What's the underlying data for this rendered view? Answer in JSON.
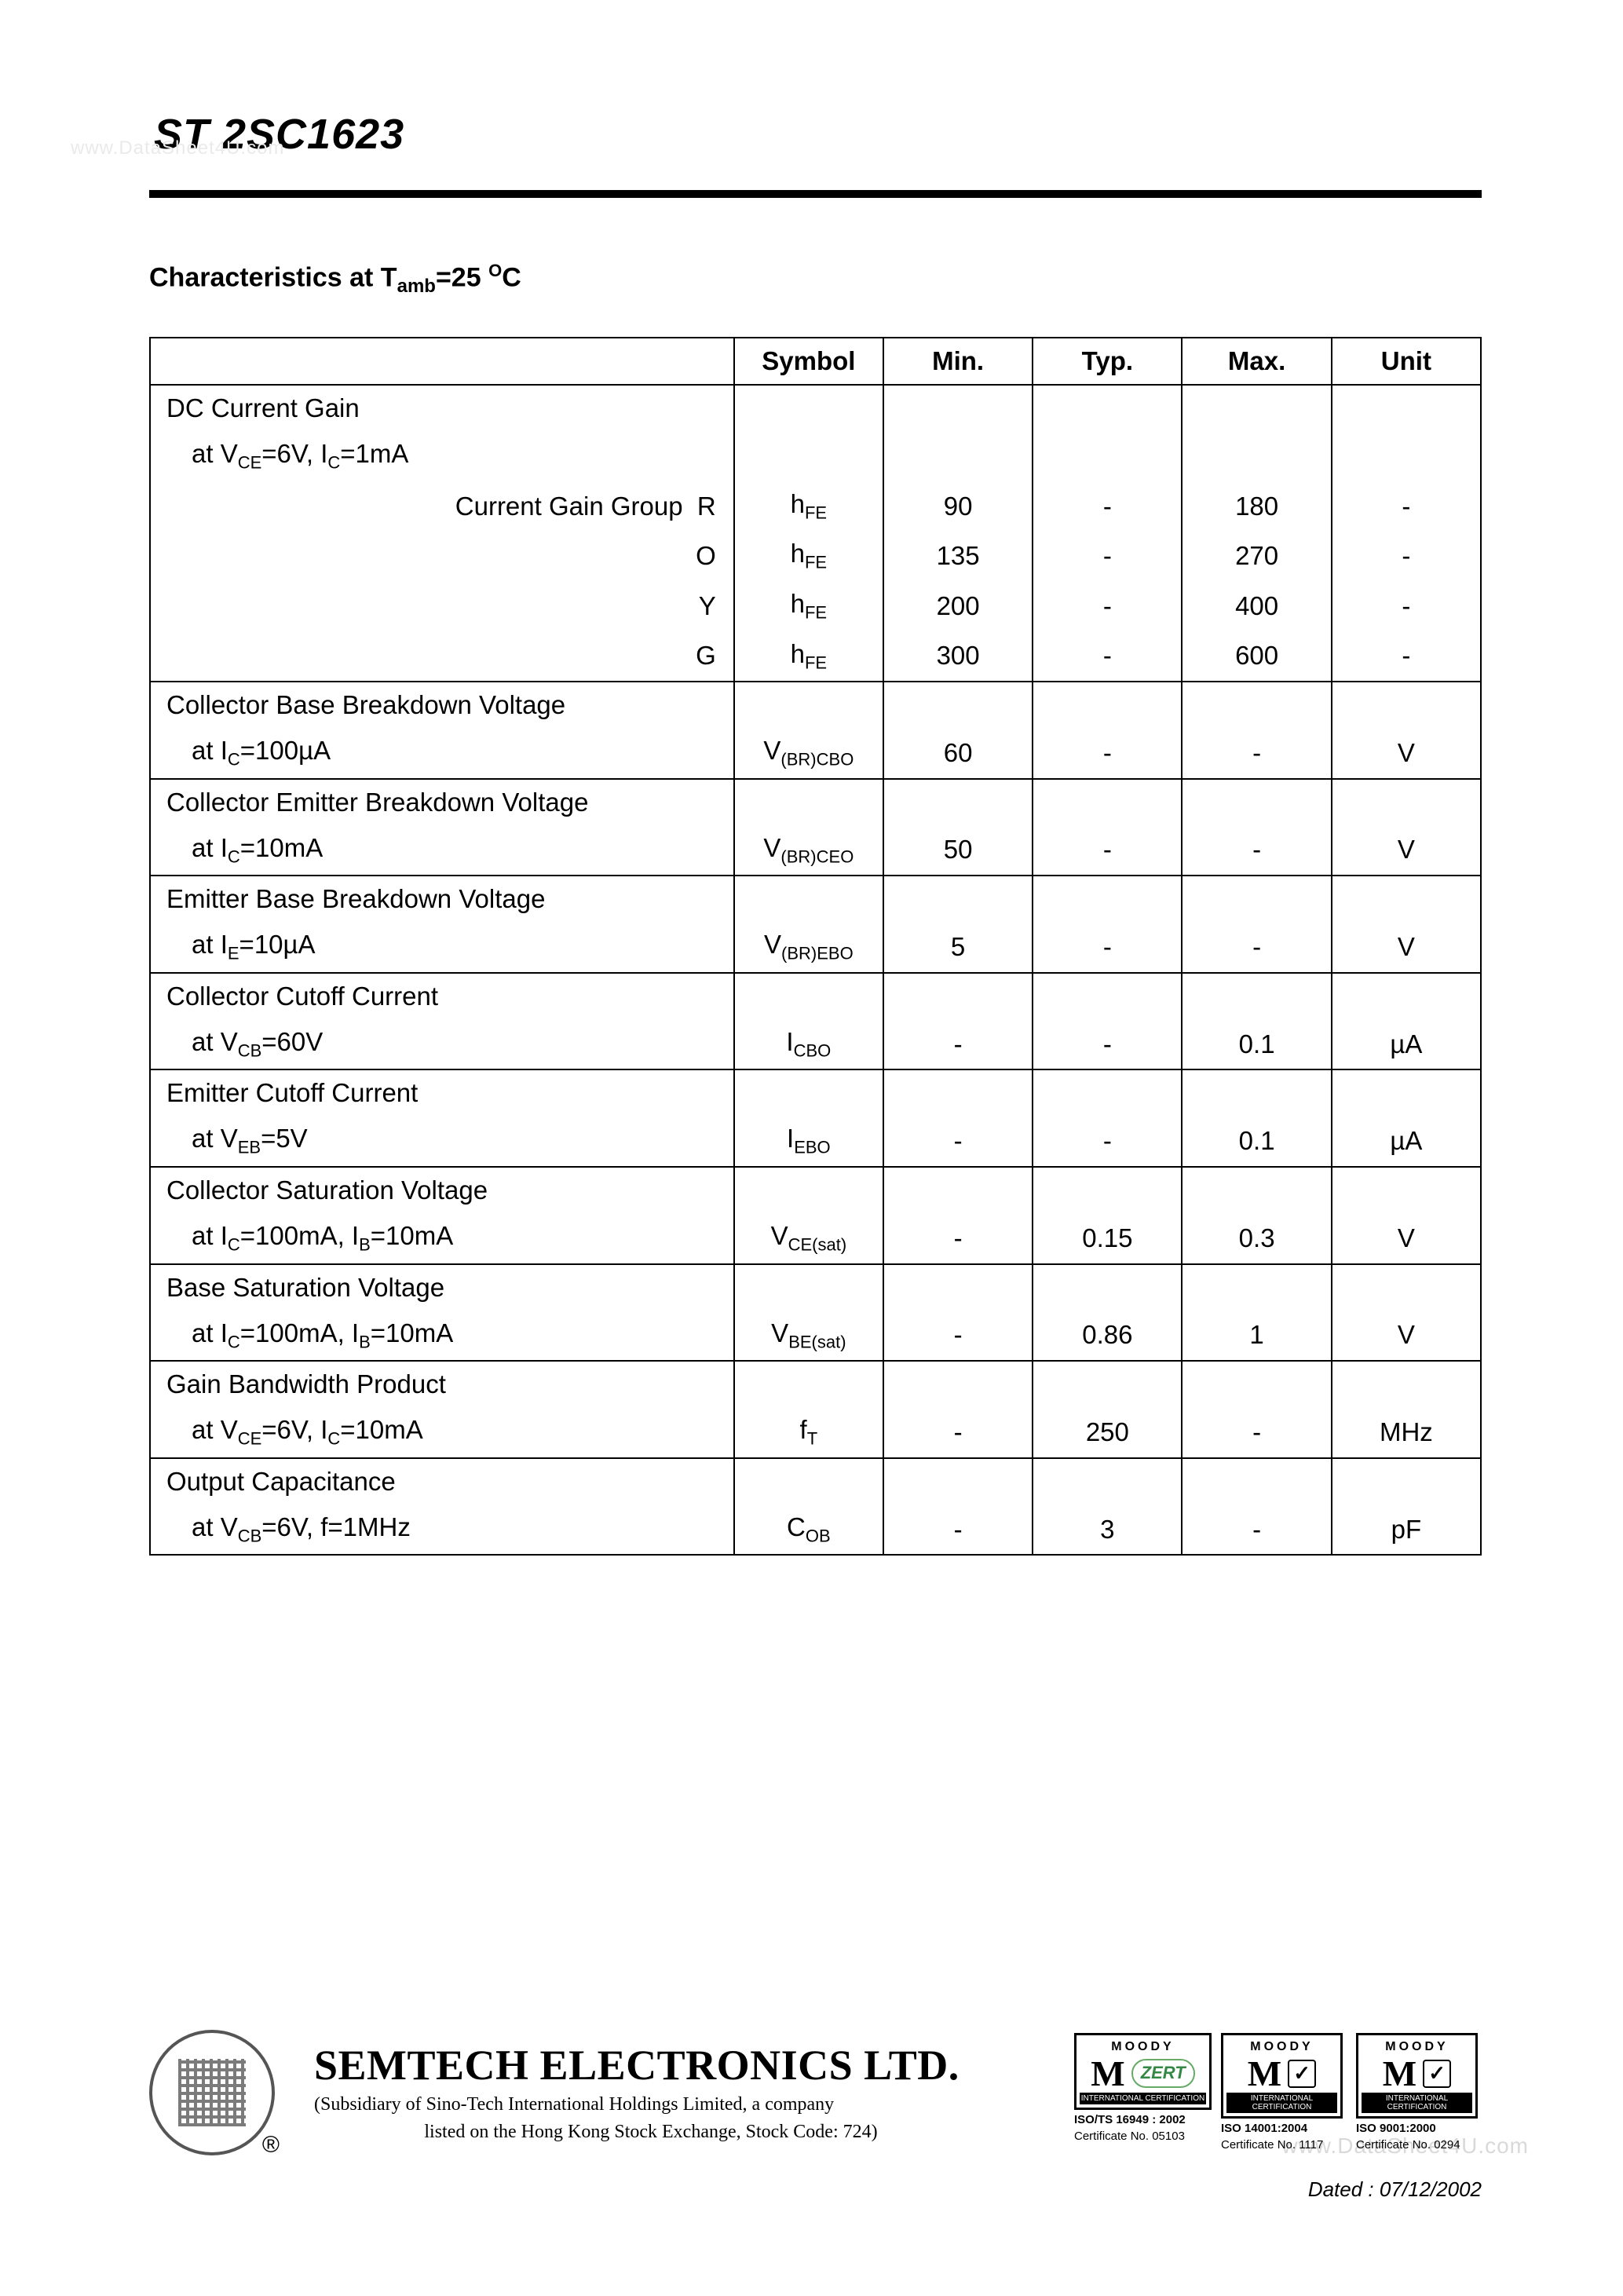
{
  "watermarks": {
    "top_left": "www.DataSheet4U.com",
    "bottom_right": "www.DataSheet4U.com"
  },
  "header": {
    "part_number": "ST 2SC1623"
  },
  "section": {
    "title_prefix": "Characteristics at T",
    "title_sub": "amb",
    "title_eq": "=25 ",
    "title_sup": "O",
    "title_suffix": "C"
  },
  "table": {
    "headers": {
      "param": "",
      "symbol": "Symbol",
      "min": "Min.",
      "typ": "Typ.",
      "max": "Max.",
      "unit": "Unit"
    },
    "rows": [
      {
        "param_html": "DC Current Gain",
        "symbol": "",
        "min": "",
        "typ": "",
        "max": "",
        "unit": "",
        "cls": "no-bottom"
      },
      {
        "param_html": "<span class='indent1'>at V<sub>CE</sub>=6V, I<sub>C</sub>=1mA</span>",
        "symbol": "",
        "min": "",
        "typ": "",
        "max": "",
        "unit": "",
        "cls": "no-top no-bottom"
      },
      {
        "param_html": "<span class='rtAlignLabel'>Current Gain Group&nbsp;&nbsp;R</span>",
        "symbol": "h<sub>FE</sub>",
        "min": "90",
        "typ": "-",
        "max": "180",
        "unit": "-",
        "cls": "no-top no-bottom"
      },
      {
        "param_html": "<span class='rtAlignLabel'>O</span>",
        "symbol": "h<sub>FE</sub>",
        "min": "135",
        "typ": "-",
        "max": "270",
        "unit": "-",
        "cls": "no-top no-bottom"
      },
      {
        "param_html": "<span class='rtAlignLabel'>Y</span>",
        "symbol": "h<sub>FE</sub>",
        "min": "200",
        "typ": "-",
        "max": "400",
        "unit": "-",
        "cls": "no-top no-bottom"
      },
      {
        "param_html": "<span class='rtAlignLabel'>G</span>",
        "symbol": "h<sub>FE</sub>",
        "min": "300",
        "typ": "-",
        "max": "600",
        "unit": "-",
        "cls": "no-top"
      },
      {
        "param_html": "Collector Base Breakdown Voltage",
        "symbol": "",
        "min": "",
        "typ": "",
        "max": "",
        "unit": "",
        "cls": "no-bottom"
      },
      {
        "param_html": "<span class='indent1'>at I<sub>C</sub>=100µA</span>",
        "symbol": "V<sub>(BR)CBO</sub>",
        "min": "60",
        "typ": "-",
        "max": "-",
        "unit": "V",
        "cls": "no-top"
      },
      {
        "param_html": "Collector Emitter Breakdown Voltage",
        "symbol": "",
        "min": "",
        "typ": "",
        "max": "",
        "unit": "",
        "cls": "no-bottom"
      },
      {
        "param_html": "<span class='indent1'>at I<sub>C</sub>=10mA</span>",
        "symbol": "V<sub>(BR)CEO</sub>",
        "min": "50",
        "typ": "-",
        "max": "-",
        "unit": "V",
        "cls": "no-top"
      },
      {
        "param_html": "Emitter Base Breakdown Voltage",
        "symbol": "",
        "min": "",
        "typ": "",
        "max": "",
        "unit": "",
        "cls": "no-bottom"
      },
      {
        "param_html": "<span class='indent1'>at I<sub>E</sub>=10µA</span>",
        "symbol": "V<sub>(BR)EBO</sub>",
        "min": "5",
        "typ": "-",
        "max": "-",
        "unit": "V",
        "cls": "no-top"
      },
      {
        "param_html": "Collector Cutoff Current",
        "symbol": "",
        "min": "",
        "typ": "",
        "max": "",
        "unit": "",
        "cls": "no-bottom"
      },
      {
        "param_html": "<span class='indent1'>at V<sub>CB</sub>=60V</span>",
        "symbol": "I<sub>CBO</sub>",
        "min": "-",
        "typ": "-",
        "max": "0.1",
        "unit": "µA",
        "cls": "no-top"
      },
      {
        "param_html": "Emitter Cutoff Current",
        "symbol": "",
        "min": "",
        "typ": "",
        "max": "",
        "unit": "",
        "cls": "no-bottom"
      },
      {
        "param_html": "<span class='indent1'>at V<sub>EB</sub>=5V</span>",
        "symbol": "I<sub>EBO</sub>",
        "min": "-",
        "typ": "-",
        "max": "0.1",
        "unit": "µA",
        "cls": "no-top"
      },
      {
        "param_html": "Collector Saturation Voltage",
        "symbol": "",
        "min": "",
        "typ": "",
        "max": "",
        "unit": "",
        "cls": "no-bottom"
      },
      {
        "param_html": "<span class='indent1'>at I<sub>C</sub>=100mA, I<sub>B</sub>=10mA</span>",
        "symbol": "V<sub>CE(sat)</sub>",
        "min": "-",
        "typ": "0.15",
        "max": "0.3",
        "unit": "V",
        "cls": "no-top"
      },
      {
        "param_html": "Base Saturation Voltage",
        "symbol": "",
        "min": "",
        "typ": "",
        "max": "",
        "unit": "",
        "cls": "no-bottom"
      },
      {
        "param_html": "<span class='indent1'>at I<sub>C</sub>=100mA, I<sub>B</sub>=10mA</span>",
        "symbol": "V<sub>BE(sat)</sub>",
        "min": "-",
        "typ": "0.86",
        "max": "1",
        "unit": "V",
        "cls": "no-top"
      },
      {
        "param_html": "Gain Bandwidth Product",
        "symbol": "",
        "min": "",
        "typ": "",
        "max": "",
        "unit": "",
        "cls": "no-bottom"
      },
      {
        "param_html": "<span class='indent1'>at V<sub>CE</sub>=6V, I<sub>C</sub>=10mA</span>",
        "symbol": "f<sub>T</sub>",
        "min": "-",
        "typ": "250",
        "max": "-",
        "unit": "MHz",
        "cls": "no-top"
      },
      {
        "param_html": "Output Capacitance",
        "symbol": "",
        "min": "",
        "typ": "",
        "max": "",
        "unit": "",
        "cls": "no-bottom"
      },
      {
        "param_html": "<span class='indent1'>at V<sub>CB</sub>=6V, f=1MHz</span>",
        "symbol": "C<sub>OB</sub>",
        "min": "-",
        "typ": "3",
        "max": "-",
        "unit": "pF",
        "cls": "no-top"
      }
    ]
  },
  "footer": {
    "reg_mark": "®",
    "company_name": "SEMTECH ELECTRONICS LTD.",
    "company_sub1": "(Subsidiary of Sino-Tech International Holdings Limited, a company",
    "company_sub2": "listed on the Hong Kong Stock Exchange, Stock Code: 724)",
    "cert_topword": "MOODY",
    "zert": "ZERT",
    "cert_strip": "INTERNATIONAL CERTIFICATION",
    "cert1_line1": "ISO/TS 16949 : 2002",
    "cert1_line2": "Certificate No. 05103",
    "cert2_line1": "ISO 14001:2004",
    "cert2_line2": "Certificate No. 1117",
    "cert3_line1": "ISO 9001:2000",
    "cert3_line2": "Certificate No. 0294",
    "dated": "Dated : 07/12/2002"
  }
}
